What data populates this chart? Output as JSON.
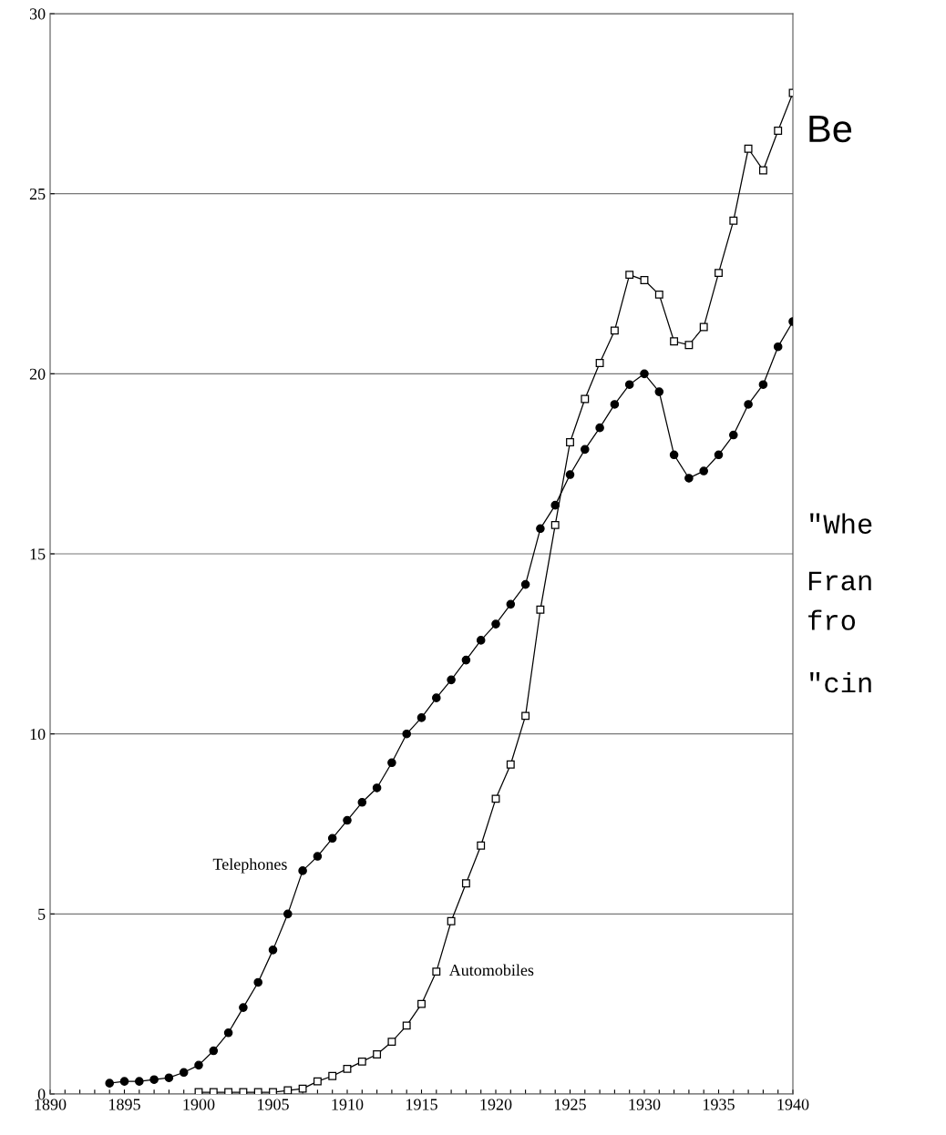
{
  "chart_data": {
    "type": "line",
    "x": [
      1894,
      1895,
      1896,
      1897,
      1898,
      1899,
      1900,
      1901,
      1902,
      1903,
      1904,
      1905,
      1906,
      1907,
      1908,
      1909,
      1910,
      1911,
      1912,
      1913,
      1914,
      1915,
      1916,
      1917,
      1918,
      1919,
      1920,
      1921,
      1922,
      1923,
      1924,
      1925,
      1926,
      1927,
      1928,
      1929,
      1930,
      1931,
      1932,
      1933,
      1934,
      1935,
      1936,
      1937,
      1938,
      1939,
      1940
    ],
    "series": [
      {
        "name": "Telephones",
        "color": "#000000",
        "marker": "circle",
        "values": [
          0.3,
          0.35,
          0.35,
          0.4,
          0.45,
          0.6,
          0.8,
          1.2,
          1.7,
          2.4,
          3.1,
          4.0,
          5.0,
          6.2,
          6.6,
          7.1,
          7.6,
          8.1,
          8.5,
          9.2,
          10.0,
          10.45,
          11.0,
          11.5,
          12.05,
          12.6,
          13.05,
          13.6,
          14.15,
          15.7,
          16.35,
          17.2,
          17.9,
          18.5,
          19.15,
          19.7,
          20.0,
          19.5,
          17.75,
          17.1,
          17.3,
          17.75,
          18.3,
          19.15,
          19.7,
          20.75,
          21.45
        ]
      },
      {
        "name": "Automobiles",
        "color": "#000000",
        "marker": "square",
        "x": [
          1900,
          1901,
          1902,
          1903,
          1904,
          1905,
          1906,
          1907,
          1908,
          1909,
          1910,
          1911,
          1912,
          1913,
          1914,
          1915,
          1916,
          1917,
          1918,
          1919,
          1920,
          1921,
          1922,
          1923,
          1924,
          1925,
          1926,
          1927,
          1928,
          1929,
          1930,
          1931,
          1932,
          1933,
          1934,
          1935,
          1936,
          1937,
          1938,
          1939,
          1940
        ],
        "values": [
          0.05,
          0.05,
          0.05,
          0.05,
          0.05,
          0.05,
          0.1,
          0.15,
          0.35,
          0.5,
          0.7,
          0.9,
          1.1,
          1.45,
          1.9,
          2.5,
          3.4,
          4.8,
          5.85,
          6.9,
          8.2,
          9.15,
          10.5,
          13.45,
          15.8,
          18.1,
          19.3,
          20.3,
          21.2,
          22.75,
          22.6,
          22.2,
          20.9,
          20.8,
          21.3,
          22.8,
          24.25,
          26.25,
          25.65,
          26.75,
          27.8
        ]
      }
    ],
    "xlim": [
      1890,
      1940
    ],
    "ylim": [
      0,
      30
    ],
    "xticks": [
      1890,
      {
        "value": 1891,
        "label": null
      },
      {
        "value": 1892,
        "label": null
      },
      {
        "value": 1893,
        "label": null
      },
      {
        "value": 1894,
        "label": null
      },
      1895,
      {
        "value": 1896,
        "label": null
      },
      {
        "value": 1897,
        "label": null
      },
      {
        "value": 1898,
        "label": null
      },
      {
        "value": 1899,
        "label": null
      },
      1900,
      {
        "value": 1901,
        "label": null
      },
      {
        "value": 1902,
        "label": null
      },
      {
        "value": 1903,
        "label": null
      },
      {
        "value": 1904,
        "label": null
      },
      1905,
      {
        "value": 1906,
        "label": null
      },
      {
        "value": 1907,
        "label": null
      },
      {
        "value": 1908,
        "label": null
      },
      {
        "value": 1909,
        "label": null
      },
      1910,
      {
        "value": 1911,
        "label": null
      },
      {
        "value": 1912,
        "label": null
      },
      {
        "value": 1913,
        "label": null
      },
      {
        "value": 1914,
        "label": null
      },
      1915,
      {
        "value": 1916,
        "label": null
      },
      {
        "value": 1917,
        "label": null
      },
      {
        "value": 1918,
        "label": null
      },
      {
        "value": 1919,
        "label": null
      },
      1920,
      {
        "value": 1921,
        "label": null
      },
      {
        "value": 1922,
        "label": null
      },
      {
        "value": 1923,
        "label": null
      },
      {
        "value": 1924,
        "label": null
      },
      1925,
      {
        "value": 1926,
        "label": null
      },
      {
        "value": 1927,
        "label": null
      },
      {
        "value": 1928,
        "label": null
      },
      {
        "value": 1929,
        "label": null
      },
      1930,
      {
        "value": 1931,
        "label": null
      },
      {
        "value": 1932,
        "label": null
      },
      {
        "value": 1933,
        "label": null
      },
      {
        "value": 1934,
        "label": null
      },
      1935,
      {
        "value": 1936,
        "label": null
      },
      {
        "value": 1937,
        "label": null
      },
      {
        "value": 1938,
        "label": null
      },
      {
        "value": 1939,
        "label": null
      },
      1940
    ],
    "yticks": [
      0,
      5,
      10,
      15,
      20,
      25,
      30
    ],
    "grid": "y",
    "line_style": "solid",
    "annotations": [
      "Be",
      "\"Whe",
      "Fran",
      "fro",
      "\"cin"
    ]
  }
}
